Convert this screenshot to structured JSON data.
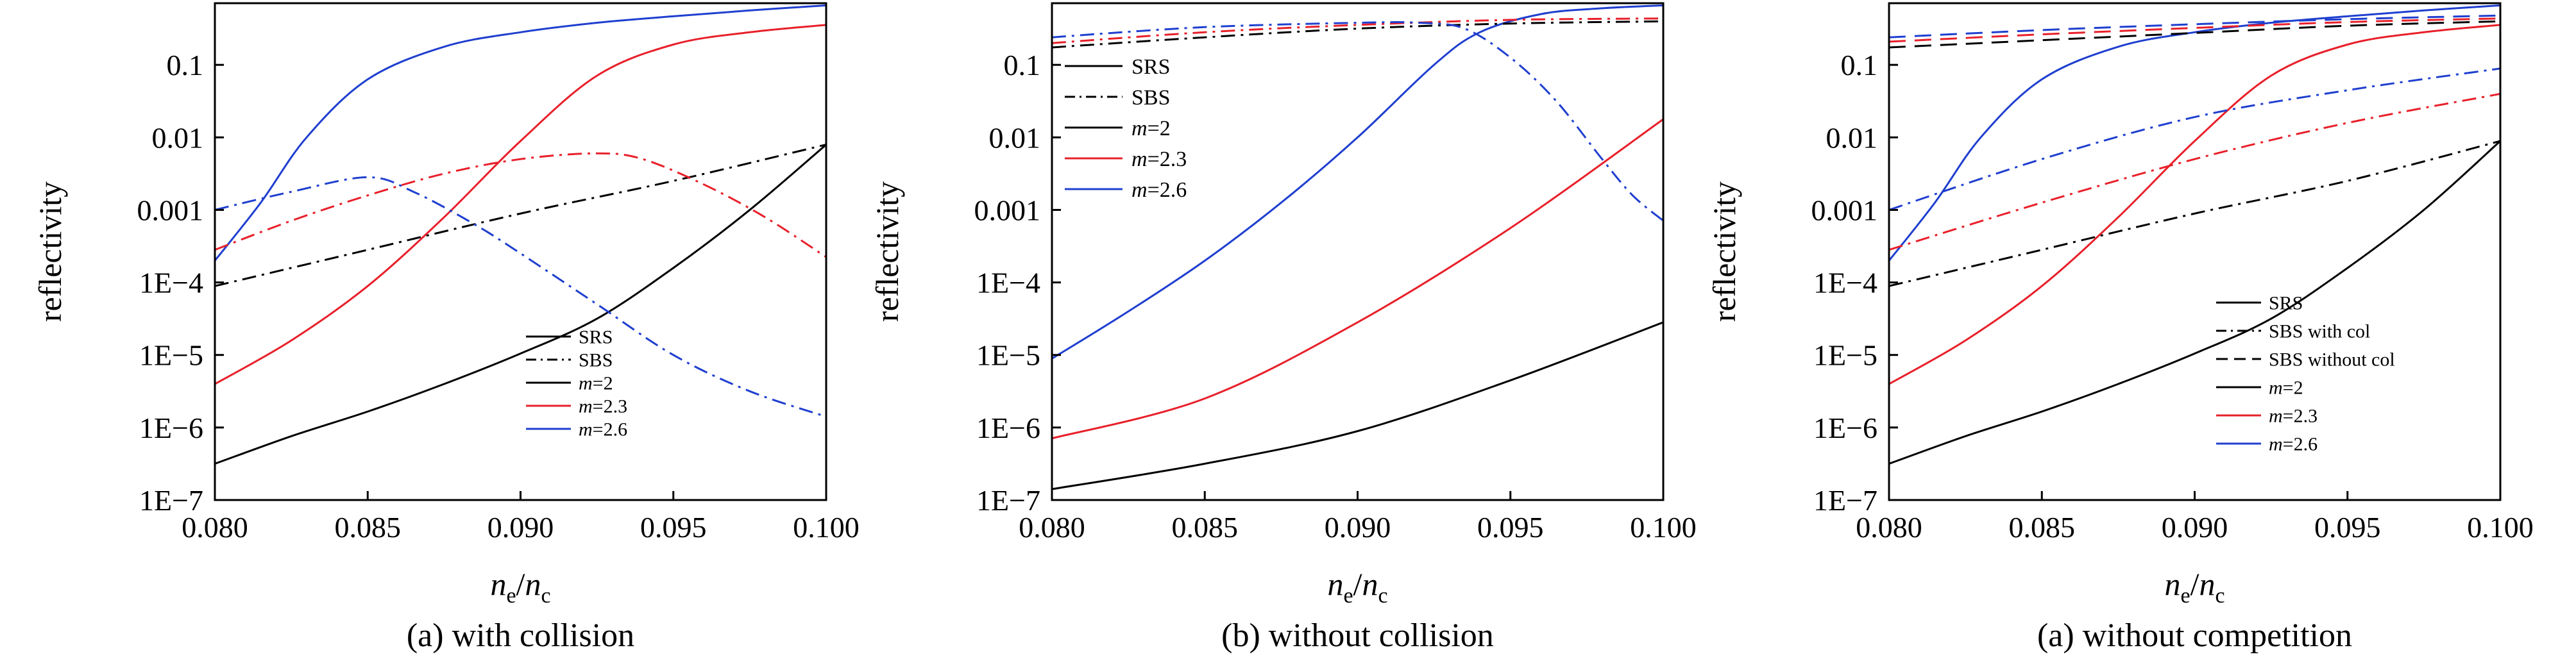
{
  "chart_data": [
    {
      "type": "line",
      "caption": "(a) with collision",
      "ylabel": "reflectivity",
      "xlabel_main": "n",
      "xlabel_sub1": "e",
      "xlabel_sep": "/",
      "xlabel_sub2": "c",
      "xlim": [
        0.08,
        0.1
      ],
      "ylim_log10": [
        -7,
        -0.15
      ],
      "xticks": [
        0.08,
        0.085,
        0.09,
        0.095,
        0.1
      ],
      "xtick_labels": [
        "0.080",
        "0.085",
        "0.090",
        "0.095",
        "0.100"
      ],
      "yticks_log10": [
        -7,
        -6,
        -5,
        -4,
        -3,
        -2,
        -1
      ],
      "ytick_labels": [
        "1E−7",
        "1E−6",
        "1E−5",
        "1E−4",
        "0.001",
        "0.01",
        "0.1"
      ],
      "legend": {
        "position": "bottom-right",
        "entries": [
          {
            "label": "SRS",
            "color": "#000000",
            "dash": "solid"
          },
          {
            "label": "SBS",
            "color": "#000000",
            "dash": "dashdot"
          },
          {
            "prefix": "m",
            "label": "=2",
            "color": "#000000",
            "dash": "solid"
          },
          {
            "prefix": "m",
            "label": "=2.3",
            "color": "#e8202a",
            "dash": "solid"
          },
          {
            "prefix": "m",
            "label": "=2.6",
            "color": "#1f3fcf",
            "dash": "solid"
          }
        ]
      },
      "series": [
        {
          "name": "SRS m=2",
          "color": "#000000",
          "dash": "solid",
          "x": [
            0.08,
            0.0825,
            0.085,
            0.0875,
            0.09,
            0.0925,
            0.095,
            0.0975,
            0.1
          ],
          "y_log10": [
            -6.5,
            -6.12,
            -5.78,
            -5.4,
            -4.98,
            -4.5,
            -3.8,
            -3.0,
            -2.1
          ]
        },
        {
          "name": "SRS m=2.3",
          "color": "#e8202a",
          "dash": "solid",
          "x": [
            0.08,
            0.0825,
            0.085,
            0.0875,
            0.09,
            0.0925,
            0.095,
            0.0975,
            0.1
          ],
          "y_log10": [
            -5.4,
            -4.8,
            -4.05,
            -3.1,
            -2.05,
            -1.15,
            -0.72,
            -0.55,
            -0.45
          ]
        },
        {
          "name": "SRS m=2.6",
          "color": "#1f3fcf",
          "dash": "solid",
          "x": [
            0.08,
            0.0815,
            0.083,
            0.085,
            0.0875,
            0.09,
            0.0925,
            0.095,
            0.0975,
            0.1
          ],
          "y_log10": [
            -3.7,
            -2.9,
            -2.0,
            -1.2,
            -0.75,
            -0.55,
            -0.42,
            -0.33,
            -0.25,
            -0.18
          ]
        },
        {
          "name": "SBS m=2",
          "color": "#000000",
          "dash": "dashdot",
          "x": [
            0.08,
            0.085,
            0.09,
            0.095,
            0.1
          ],
          "y_log10": [
            -4.05,
            -3.55,
            -3.05,
            -2.6,
            -2.1
          ]
        },
        {
          "name": "SBS m=2.3",
          "color": "#e8202a",
          "dash": "dashdot",
          "x": [
            0.08,
            0.0825,
            0.085,
            0.0875,
            0.09,
            0.0925,
            0.094,
            0.096,
            0.098,
            0.1
          ],
          "y_log10": [
            -3.55,
            -3.15,
            -2.8,
            -2.5,
            -2.3,
            -2.22,
            -2.3,
            -2.65,
            -3.1,
            -3.65
          ]
        },
        {
          "name": "SBS m=2.6",
          "color": "#1f3fcf",
          "dash": "dashdot",
          "x": [
            0.08,
            0.0825,
            0.085,
            0.0865,
            0.0885,
            0.09,
            0.0925,
            0.095,
            0.0975,
            0.1
          ],
          "y_log10": [
            -3.0,
            -2.75,
            -2.55,
            -2.75,
            -3.2,
            -3.6,
            -4.3,
            -5.0,
            -5.5,
            -5.85
          ]
        }
      ]
    },
    {
      "type": "line",
      "caption": "(b) without collision",
      "ylabel": "reflectivity",
      "xlabel_main": "n",
      "xlabel_sub1": "e",
      "xlabel_sep": "/",
      "xlabel_sub2": "c",
      "xlim": [
        0.08,
        0.1
      ],
      "ylim_log10": [
        -7,
        -0.15
      ],
      "xticks": [
        0.08,
        0.085,
        0.09,
        0.095,
        0.1
      ],
      "xtick_labels": [
        "0.080",
        "0.085",
        "0.090",
        "0.095",
        "0.100"
      ],
      "yticks_log10": [
        -7,
        -6,
        -5,
        -4,
        -3,
        -2,
        -1
      ],
      "ytick_labels": [
        "1E−7",
        "1E−6",
        "1E−5",
        "1E−4",
        "0.001",
        "0.01",
        "0.1"
      ],
      "legend": {
        "position": "top-left",
        "entries": [
          {
            "label": "SRS",
            "color": "#000000",
            "dash": "solid"
          },
          {
            "label": "SBS",
            "color": "#000000",
            "dash": "dashdot"
          },
          {
            "prefix": "m",
            "label": "=2",
            "color": "#000000",
            "dash": "solid"
          },
          {
            "prefix": "m",
            "label": "=2.3",
            "color": "#e8202a",
            "dash": "solid"
          },
          {
            "prefix": "m",
            "label": "=2.6",
            "color": "#1f3fcf",
            "dash": "solid"
          }
        ]
      },
      "series": [
        {
          "name": "SRS m=2",
          "color": "#000000",
          "dash": "solid",
          "x": [
            0.08,
            0.085,
            0.09,
            0.095,
            0.1
          ],
          "y_log10": [
            -6.85,
            -6.5,
            -6.05,
            -5.35,
            -4.55
          ]
        },
        {
          "name": "SRS m=2.3",
          "color": "#e8202a",
          "dash": "solid",
          "x": [
            0.08,
            0.085,
            0.09,
            0.095,
            0.1
          ],
          "y_log10": [
            -6.15,
            -5.6,
            -4.55,
            -3.25,
            -1.75
          ]
        },
        {
          "name": "SRS m=2.6",
          "color": "#1f3fcf",
          "dash": "solid",
          "x": [
            0.08,
            0.0825,
            0.085,
            0.0875,
            0.09,
            0.0925,
            0.094,
            0.096,
            0.098,
            0.1
          ],
          "y_log10": [
            -5.05,
            -4.4,
            -3.7,
            -2.9,
            -2.0,
            -1.0,
            -0.55,
            -0.3,
            -0.22,
            -0.18
          ]
        },
        {
          "name": "SBS m=2",
          "color": "#000000",
          "dash": "dashdot",
          "x": [
            0.08,
            0.085,
            0.09,
            0.095,
            0.1
          ],
          "y_log10": [
            -0.76,
            -0.62,
            -0.5,
            -0.43,
            -0.4
          ]
        },
        {
          "name": "SBS m=2.3",
          "color": "#e8202a",
          "dash": "dashdot",
          "x": [
            0.08,
            0.085,
            0.09,
            0.095,
            0.1
          ],
          "y_log10": [
            -0.7,
            -0.55,
            -0.45,
            -0.38,
            -0.36
          ]
        },
        {
          "name": "SBS m=2.6",
          "color": "#1f3fcf",
          "dash": "dashdot",
          "x": [
            0.08,
            0.085,
            0.09,
            0.092,
            0.0935,
            0.095,
            0.0965,
            0.098,
            0.099,
            0.1
          ],
          "y_log10": [
            -0.62,
            -0.48,
            -0.42,
            -0.42,
            -0.5,
            -0.9,
            -1.5,
            -2.3,
            -2.8,
            -3.15
          ]
        }
      ]
    },
    {
      "type": "line",
      "caption": "(a) without competition",
      "ylabel": "reflectivity",
      "xlabel_main": "n",
      "xlabel_sub1": "e",
      "xlabel_sep": "/",
      "xlabel_sub2": "c",
      "xlim": [
        0.08,
        0.1
      ],
      "ylim_log10": [
        -7,
        -0.15
      ],
      "xticks": [
        0.08,
        0.085,
        0.09,
        0.095,
        0.1
      ],
      "xtick_labels": [
        "0.080",
        "0.085",
        "0.090",
        "0.095",
        "0.100"
      ],
      "yticks_log10": [
        -7,
        -6,
        -5,
        -4,
        -3,
        -2,
        -1
      ],
      "ytick_labels": [
        "1E−7",
        "1E−6",
        "1E−5",
        "1E−4",
        "0.001",
        "0.01",
        "0.1"
      ],
      "legend": {
        "position": "bottom-right",
        "entries": [
          {
            "label": "SRS",
            "color": "#000000",
            "dash": "solid"
          },
          {
            "label": "SBS with col",
            "color": "#000000",
            "dash": "dashdot"
          },
          {
            "label": "SBS without col",
            "color": "#000000",
            "dash": "dashed"
          },
          {
            "prefix": "m",
            "label": "=2",
            "color": "#000000",
            "dash": "solid"
          },
          {
            "prefix": "m",
            "label": "=2.3",
            "color": "#e8202a",
            "dash": "solid"
          },
          {
            "prefix": "m",
            "label": "=2.6",
            "color": "#1f3fcf",
            "dash": "solid"
          }
        ]
      },
      "series": [
        {
          "name": "SRS m=2",
          "color": "#000000",
          "dash": "solid",
          "x": [
            0.08,
            0.0825,
            0.085,
            0.0875,
            0.09,
            0.0925,
            0.095,
            0.0975,
            0.1
          ],
          "y_log10": [
            -6.5,
            -6.12,
            -5.78,
            -5.4,
            -4.98,
            -4.5,
            -3.8,
            -3.0,
            -2.05
          ]
        },
        {
          "name": "SRS m=2.3",
          "color": "#e8202a",
          "dash": "solid",
          "x": [
            0.08,
            0.0825,
            0.085,
            0.0875,
            0.09,
            0.0925,
            0.095,
            0.0975,
            0.1
          ],
          "y_log10": [
            -5.4,
            -4.8,
            -4.05,
            -3.1,
            -2.05,
            -1.15,
            -0.72,
            -0.55,
            -0.45
          ]
        },
        {
          "name": "SRS m=2.6",
          "color": "#1f3fcf",
          "dash": "solid",
          "x": [
            0.08,
            0.0815,
            0.083,
            0.085,
            0.0875,
            0.09,
            0.0925,
            0.095,
            0.0975,
            0.1
          ],
          "y_log10": [
            -3.7,
            -2.9,
            -2.0,
            -1.2,
            -0.75,
            -0.55,
            -0.42,
            -0.33,
            -0.25,
            -0.18
          ]
        },
        {
          "name": "SBS with col m=2",
          "color": "#000000",
          "dash": "dashdot",
          "x": [
            0.08,
            0.085,
            0.09,
            0.095,
            0.1
          ],
          "y_log10": [
            -4.05,
            -3.55,
            -3.05,
            -2.6,
            -2.05
          ]
        },
        {
          "name": "SBS with col m=2.3",
          "color": "#e8202a",
          "dash": "dashdot",
          "x": [
            0.08,
            0.085,
            0.09,
            0.095,
            0.1
          ],
          "y_log10": [
            -3.55,
            -2.9,
            -2.3,
            -1.8,
            -1.4
          ]
        },
        {
          "name": "SBS with col m=2.6",
          "color": "#1f3fcf",
          "dash": "dashdot",
          "x": [
            0.08,
            0.085,
            0.09,
            0.095,
            0.1
          ],
          "y_log10": [
            -3.0,
            -2.3,
            -1.72,
            -1.35,
            -1.05
          ]
        },
        {
          "name": "SBS without col m=2",
          "color": "#000000",
          "dash": "dashed",
          "x": [
            0.08,
            0.085,
            0.09,
            0.095,
            0.1
          ],
          "y_log10": [
            -0.76,
            -0.66,
            -0.56,
            -0.46,
            -0.4
          ]
        },
        {
          "name": "SBS without col m=2.3",
          "color": "#e8202a",
          "dash": "dashed",
          "x": [
            0.08,
            0.085,
            0.09,
            0.095,
            0.1
          ],
          "y_log10": [
            -0.68,
            -0.58,
            -0.49,
            -0.41,
            -0.36
          ]
        },
        {
          "name": "SBS without col m=2.6",
          "color": "#1f3fcf",
          "dash": "dashed",
          "x": [
            0.08,
            0.085,
            0.09,
            0.095,
            0.1
          ],
          "y_log10": [
            -0.62,
            -0.52,
            -0.44,
            -0.37,
            -0.32
          ]
        }
      ]
    }
  ]
}
